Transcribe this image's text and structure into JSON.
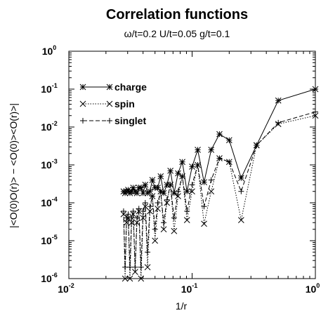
{
  "chart_data": {
    "type": "line",
    "title": "Correlation functions",
    "subtitle": "ω/t=0.2 U/t=0.05 g/t=0.1",
    "xlabel": "1/r",
    "ylabel": "|<O(0)O(r)> − <O(0)><O(r)>|",
    "xscale": "log",
    "yscale": "log",
    "xlim": [
      0.01,
      1
    ],
    "ylim": [
      1e-06,
      1
    ],
    "x_ticks": [
      {
        "base": "10",
        "exp": "-2"
      },
      {
        "base": "10",
        "exp": "-1"
      },
      {
        "base": "10",
        "exp": "0"
      }
    ],
    "y_ticks": [
      {
        "base": "10",
        "exp": "0"
      },
      {
        "base": "10",
        "exp": "-1"
      },
      {
        "base": "10",
        "exp": "-2"
      },
      {
        "base": "10",
        "exp": "-3"
      },
      {
        "base": "10",
        "exp": "-4"
      },
      {
        "base": "10",
        "exp": "-5"
      },
      {
        "base": "10",
        "exp": "-6"
      }
    ],
    "legend_position": "top-left",
    "series": [
      {
        "name": "charge",
        "marker": "star",
        "dash": "",
        "x": [
          1.0,
          0.5,
          0.3333,
          0.25,
          0.2,
          0.1667,
          0.1429,
          0.125,
          0.1111,
          0.1,
          0.0909,
          0.0833,
          0.0769,
          0.0714,
          0.0667,
          0.0625,
          0.0588,
          0.0556,
          0.0526,
          0.05,
          0.0476,
          0.0455,
          0.0435,
          0.0417,
          0.04,
          0.0385,
          0.037,
          0.0357,
          0.0345,
          0.0333,
          0.0323,
          0.0313,
          0.0303,
          0.0294,
          0.0286,
          0.0278
        ],
        "y": [
          0.1,
          0.05,
          0.0033,
          0.00045,
          0.0045,
          0.0065,
          0.0025,
          0.00035,
          0.0025,
          0.0009,
          0.0002,
          0.0012,
          0.0006,
          0.00018,
          0.0007,
          0.0003,
          0.00018,
          0.0005,
          0.00025,
          0.00025,
          0.0004,
          0.0002,
          0.00018,
          0.0003,
          0.00018,
          0.00025,
          0.00025,
          0.00018,
          0.0002,
          0.00025,
          0.0002,
          0.00018,
          0.00022,
          0.0002,
          0.00018,
          0.0002
        ]
      },
      {
        "name": "spin",
        "marker": "x",
        "dash": "1.5,2",
        "x": [
          1.0,
          0.5,
          0.3333,
          0.25,
          0.2,
          0.1667,
          0.1429,
          0.125,
          0.1111,
          0.1,
          0.0909,
          0.0833,
          0.0769,
          0.0714,
          0.0667,
          0.0625,
          0.0588,
          0.0556,
          0.0526,
          0.05,
          0.0476,
          0.0455,
          0.0435,
          0.0417,
          0.04,
          0.0385,
          0.037,
          0.0357,
          0.0345,
          0.0333,
          0.0323,
          0.0313,
          0.0303,
          0.0294,
          0.0286,
          0.0278
        ],
        "y": [
          0.02,
          0.012,
          0.0033,
          3.5e-05,
          0.0012,
          0.0015,
          0.0002,
          2.8e-05,
          0.001,
          0.0002,
          3.5e-05,
          0.0005,
          0.00015,
          1.8e-05,
          0.0003,
          0.0001,
          2e-05,
          0.0002,
          7e-05,
          1e-05,
          0.00015,
          6e-05,
          2e-06,
          8e-05,
          4e-05,
          1e-06,
          6e-05,
          3e-05,
          1.5e-06,
          5e-05,
          3e-05,
          1e-06,
          4e-05,
          3e-05,
          1e-06,
          5e-05
        ]
      },
      {
        "name": "singlet",
        "marker": "plus",
        "dash": "6,3",
        "x": [
          1.0,
          0.5,
          0.3333,
          0.25,
          0.2,
          0.1667,
          0.1429,
          0.125,
          0.1111,
          0.1,
          0.0909,
          0.0833,
          0.0769,
          0.0714,
          0.0667,
          0.0625,
          0.0588,
          0.0556,
          0.0526,
          0.05,
          0.0476,
          0.0455,
          0.0435,
          0.0417,
          0.04,
          0.0385,
          0.037,
          0.0357,
          0.0345,
          0.0333,
          0.0323,
          0.0313,
          0.0303,
          0.0294,
          0.0286,
          0.0278
        ],
        "y": [
          0.025,
          0.013,
          0.0033,
          0.0002,
          0.0012,
          0.0015,
          0.0004,
          8e-05,
          0.001,
          0.0003,
          6e-05,
          0.0005,
          0.0002,
          4e-05,
          0.0003,
          0.00012,
          3e-05,
          0.0002,
          0.0001,
          2e-05,
          0.00015,
          8e-05,
          5e-06,
          0.0001,
          6e-05,
          2e-06,
          7e-05,
          4e-05,
          2e-06,
          6e-05,
          4e-05,
          2e-06,
          5e-05,
          4e-05,
          2e-06,
          6e-05
        ]
      }
    ]
  }
}
